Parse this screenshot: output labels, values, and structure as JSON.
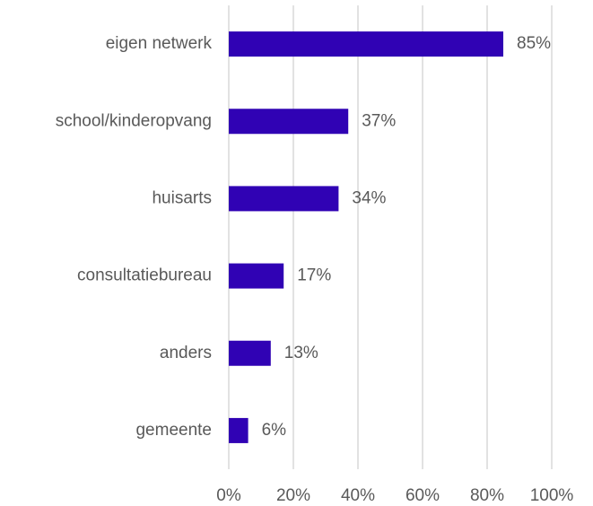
{
  "chart_data": {
    "type": "bar",
    "orientation": "horizontal",
    "categories": [
      "eigen netwerk",
      "school/kinderopvang",
      "huisarts",
      "consultatiebureau",
      "anders",
      "gemeente"
    ],
    "values": [
      85,
      37,
      34,
      17,
      13,
      6
    ],
    "value_labels": [
      "85%",
      "37%",
      "34%",
      "17%",
      "13%",
      "6%"
    ],
    "color": "#3002b4",
    "xlim": [
      0,
      100
    ],
    "xticks": [
      {
        "value": 0,
        "label": "0%"
      },
      {
        "value": 20,
        "label": "20%"
      },
      {
        "value": 40,
        "label": "40%"
      },
      {
        "value": 60,
        "label": "60%"
      },
      {
        "value": 80,
        "label": "80%"
      },
      {
        "value": 100,
        "label": "100%"
      }
    ],
    "grid": true
  }
}
